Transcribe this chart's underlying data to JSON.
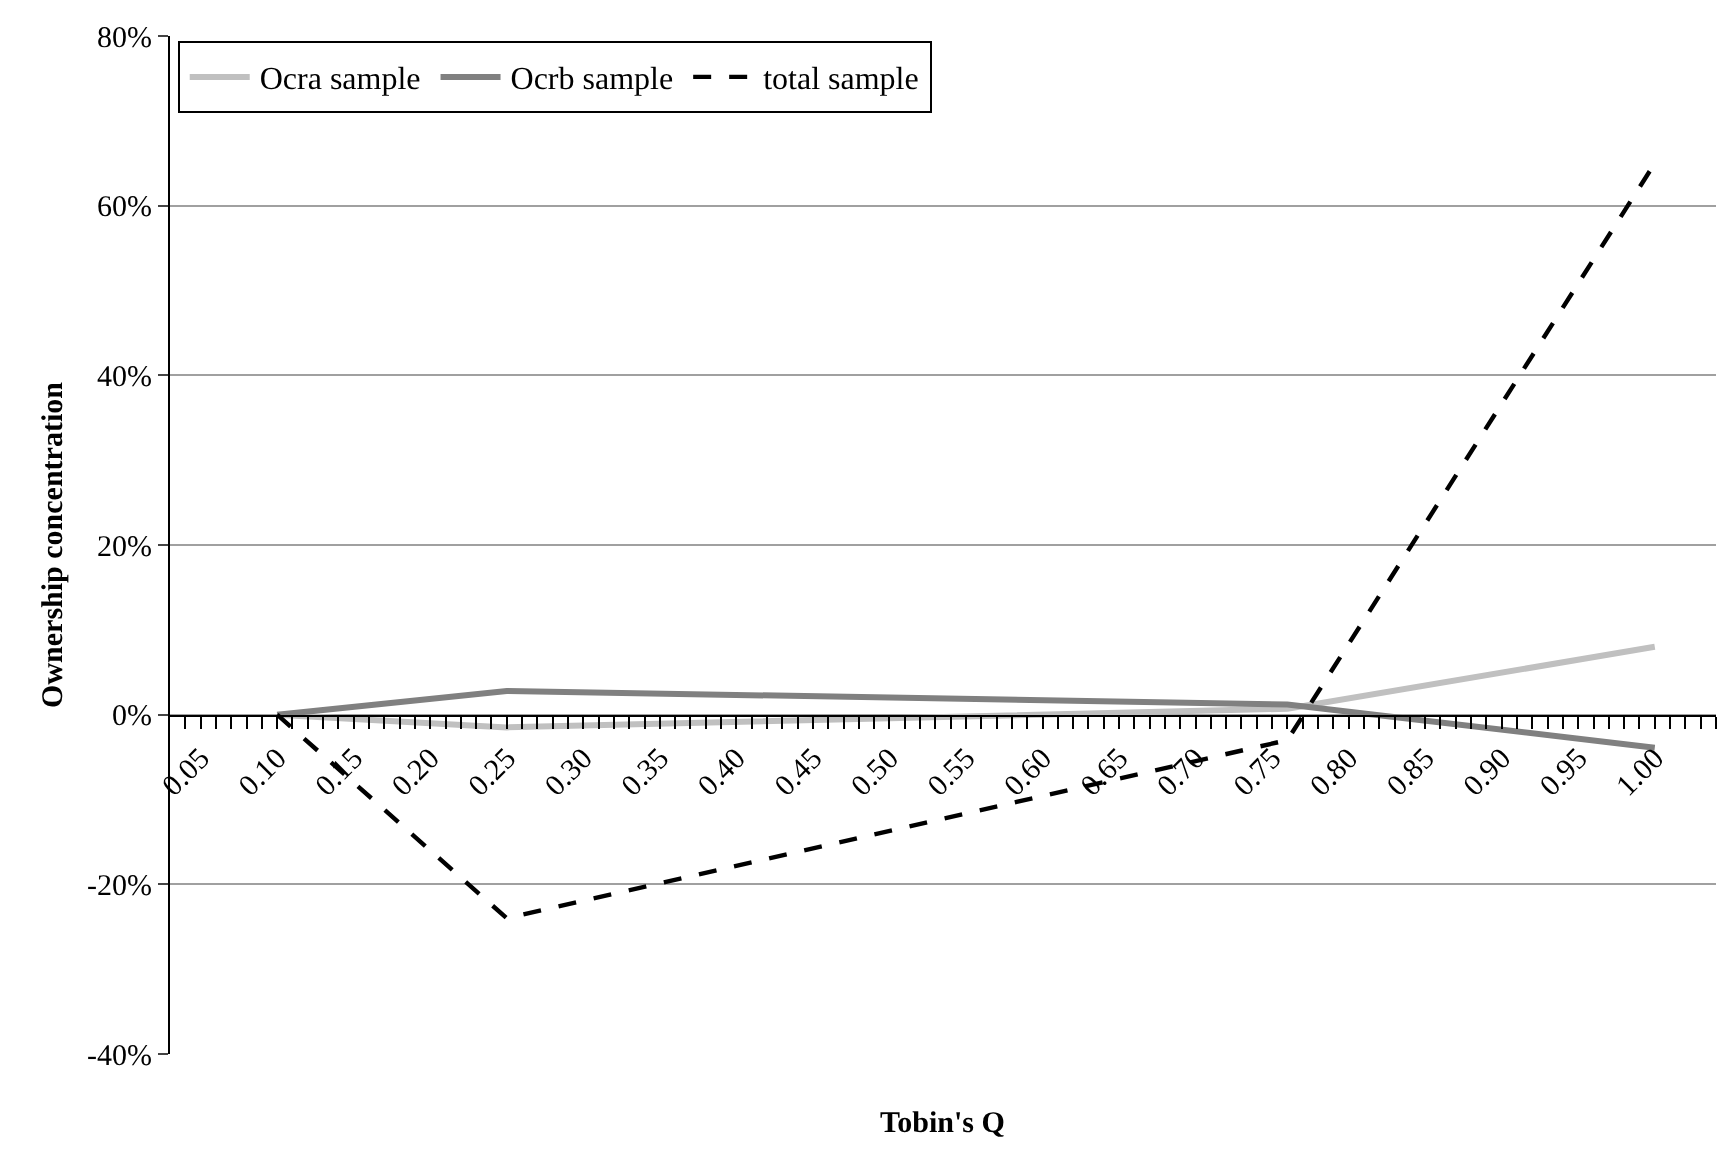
{
  "chart_data": {
    "type": "line",
    "xlabel": "Tobin's Q",
    "ylabel": "Ownership concentration",
    "x": [
      0.1,
      0.25,
      0.76,
      1.0
    ],
    "series": [
      {
        "name": "Ocra sample",
        "color": "#c0c0c0",
        "values": [
          0,
          -1.5,
          0.7,
          8
        ],
        "line_style": "solid"
      },
      {
        "name": "Ocrb sample",
        "color": "#808080",
        "values": [
          0,
          2.8,
          1.2,
          -3.9
        ],
        "line_style": "solid"
      },
      {
        "name": "total sample",
        "color": "#000000",
        "values": [
          0,
          -24,
          -3,
          65
        ],
        "line_style": "dashed"
      }
    ],
    "xlim": [
      0.03,
      1.04
    ],
    "xticks": [
      {
        "value": 0.04,
        "label": null
      },
      {
        "value": 0.05,
        "label": "0.05"
      },
      {
        "value": 0.06,
        "label": null
      },
      {
        "value": 0.07,
        "label": null
      },
      {
        "value": 0.08,
        "label": null
      },
      {
        "value": 0.09,
        "label": null
      },
      {
        "value": 0.1,
        "label": "0.10"
      },
      {
        "value": 0.11,
        "label": null
      },
      {
        "value": 0.12,
        "label": null
      },
      {
        "value": 0.13,
        "label": null
      },
      {
        "value": 0.14,
        "label": null
      },
      {
        "value": 0.15,
        "label": "0.15"
      },
      {
        "value": 0.16,
        "label": null
      },
      {
        "value": 0.17,
        "label": null
      },
      {
        "value": 0.18,
        "label": null
      },
      {
        "value": 0.19,
        "label": null
      },
      {
        "value": 0.2,
        "label": "0.20"
      },
      {
        "value": 0.21,
        "label": null
      },
      {
        "value": 0.22,
        "label": null
      },
      {
        "value": 0.23,
        "label": null
      },
      {
        "value": 0.24,
        "label": null
      },
      {
        "value": 0.25,
        "label": "0.25"
      },
      {
        "value": 0.26,
        "label": null
      },
      {
        "value": 0.27,
        "label": null
      },
      {
        "value": 0.28,
        "label": null
      },
      {
        "value": 0.29,
        "label": null
      },
      {
        "value": 0.3,
        "label": "0.30"
      },
      {
        "value": 0.31,
        "label": null
      },
      {
        "value": 0.32,
        "label": null
      },
      {
        "value": 0.33,
        "label": null
      },
      {
        "value": 0.34,
        "label": null
      },
      {
        "value": 0.35,
        "label": "0.35"
      },
      {
        "value": 0.36,
        "label": null
      },
      {
        "value": 0.37,
        "label": null
      },
      {
        "value": 0.38,
        "label": null
      },
      {
        "value": 0.39,
        "label": null
      },
      {
        "value": 0.4,
        "label": "0.40"
      },
      {
        "value": 0.41,
        "label": null
      },
      {
        "value": 0.42,
        "label": null
      },
      {
        "value": 0.43,
        "label": null
      },
      {
        "value": 0.44,
        "label": null
      },
      {
        "value": 0.45,
        "label": "0.45"
      },
      {
        "value": 0.46,
        "label": null
      },
      {
        "value": 0.47,
        "label": null
      },
      {
        "value": 0.48,
        "label": null
      },
      {
        "value": 0.49,
        "label": null
      },
      {
        "value": 0.5,
        "label": "0.50"
      },
      {
        "value": 0.51,
        "label": null
      },
      {
        "value": 0.52,
        "label": null
      },
      {
        "value": 0.53,
        "label": null
      },
      {
        "value": 0.54,
        "label": null
      },
      {
        "value": 0.55,
        "label": "0.55"
      },
      {
        "value": 0.56,
        "label": null
      },
      {
        "value": 0.57,
        "label": null
      },
      {
        "value": 0.58,
        "label": null
      },
      {
        "value": 0.59,
        "label": null
      },
      {
        "value": 0.6,
        "label": "0.60"
      },
      {
        "value": 0.61,
        "label": null
      },
      {
        "value": 0.62,
        "label": null
      },
      {
        "value": 0.63,
        "label": null
      },
      {
        "value": 0.64,
        "label": null
      },
      {
        "value": 0.65,
        "label": "0.65"
      },
      {
        "value": 0.66,
        "label": null
      },
      {
        "value": 0.67,
        "label": null
      },
      {
        "value": 0.68,
        "label": null
      },
      {
        "value": 0.69,
        "label": null
      },
      {
        "value": 0.7,
        "label": "0.70"
      },
      {
        "value": 0.71,
        "label": null
      },
      {
        "value": 0.72,
        "label": null
      },
      {
        "value": 0.73,
        "label": null
      },
      {
        "value": 0.74,
        "label": null
      },
      {
        "value": 0.75,
        "label": "0.75"
      },
      {
        "value": 0.76,
        "label": null
      },
      {
        "value": 0.77,
        "label": null
      },
      {
        "value": 0.78,
        "label": null
      },
      {
        "value": 0.79,
        "label": null
      },
      {
        "value": 0.8,
        "label": "0.80"
      },
      {
        "value": 0.81,
        "label": null
      },
      {
        "value": 0.82,
        "label": null
      },
      {
        "value": 0.83,
        "label": null
      },
      {
        "value": 0.84,
        "label": null
      },
      {
        "value": 0.85,
        "label": "0.85"
      },
      {
        "value": 0.86,
        "label": null
      },
      {
        "value": 0.87,
        "label": null
      },
      {
        "value": 0.88,
        "label": null
      },
      {
        "value": 0.89,
        "label": null
      },
      {
        "value": 0.9,
        "label": "0.90"
      },
      {
        "value": 0.91,
        "label": null
      },
      {
        "value": 0.92,
        "label": null
      },
      {
        "value": 0.93,
        "label": null
      },
      {
        "value": 0.94,
        "label": null
      },
      {
        "value": 0.95,
        "label": "0.95"
      },
      {
        "value": 0.96,
        "label": null
      },
      {
        "value": 0.97,
        "label": null
      },
      {
        "value": 0.98,
        "label": null
      },
      {
        "value": 0.99,
        "label": null
      },
      {
        "value": 1.0,
        "label": "1.00"
      },
      {
        "value": 1.01,
        "label": null
      },
      {
        "value": 1.02,
        "label": null
      },
      {
        "value": 1.03,
        "label": null
      },
      {
        "value": 1.04,
        "label": null
      }
    ],
    "ylim": [
      -40,
      80
    ],
    "yticks": [
      {
        "value": -40,
        "label": "-40%"
      },
      {
        "value": -20,
        "label": "-20%"
      },
      {
        "value": 0,
        "label": "0%"
      },
      {
        "value": 20,
        "label": "20%"
      },
      {
        "value": 40,
        "label": "40%"
      },
      {
        "value": 60,
        "label": "60%"
      },
      {
        "value": 80,
        "label": "80%"
      }
    ],
    "grid": "y",
    "legend": "top left",
    "marker": "none"
  }
}
